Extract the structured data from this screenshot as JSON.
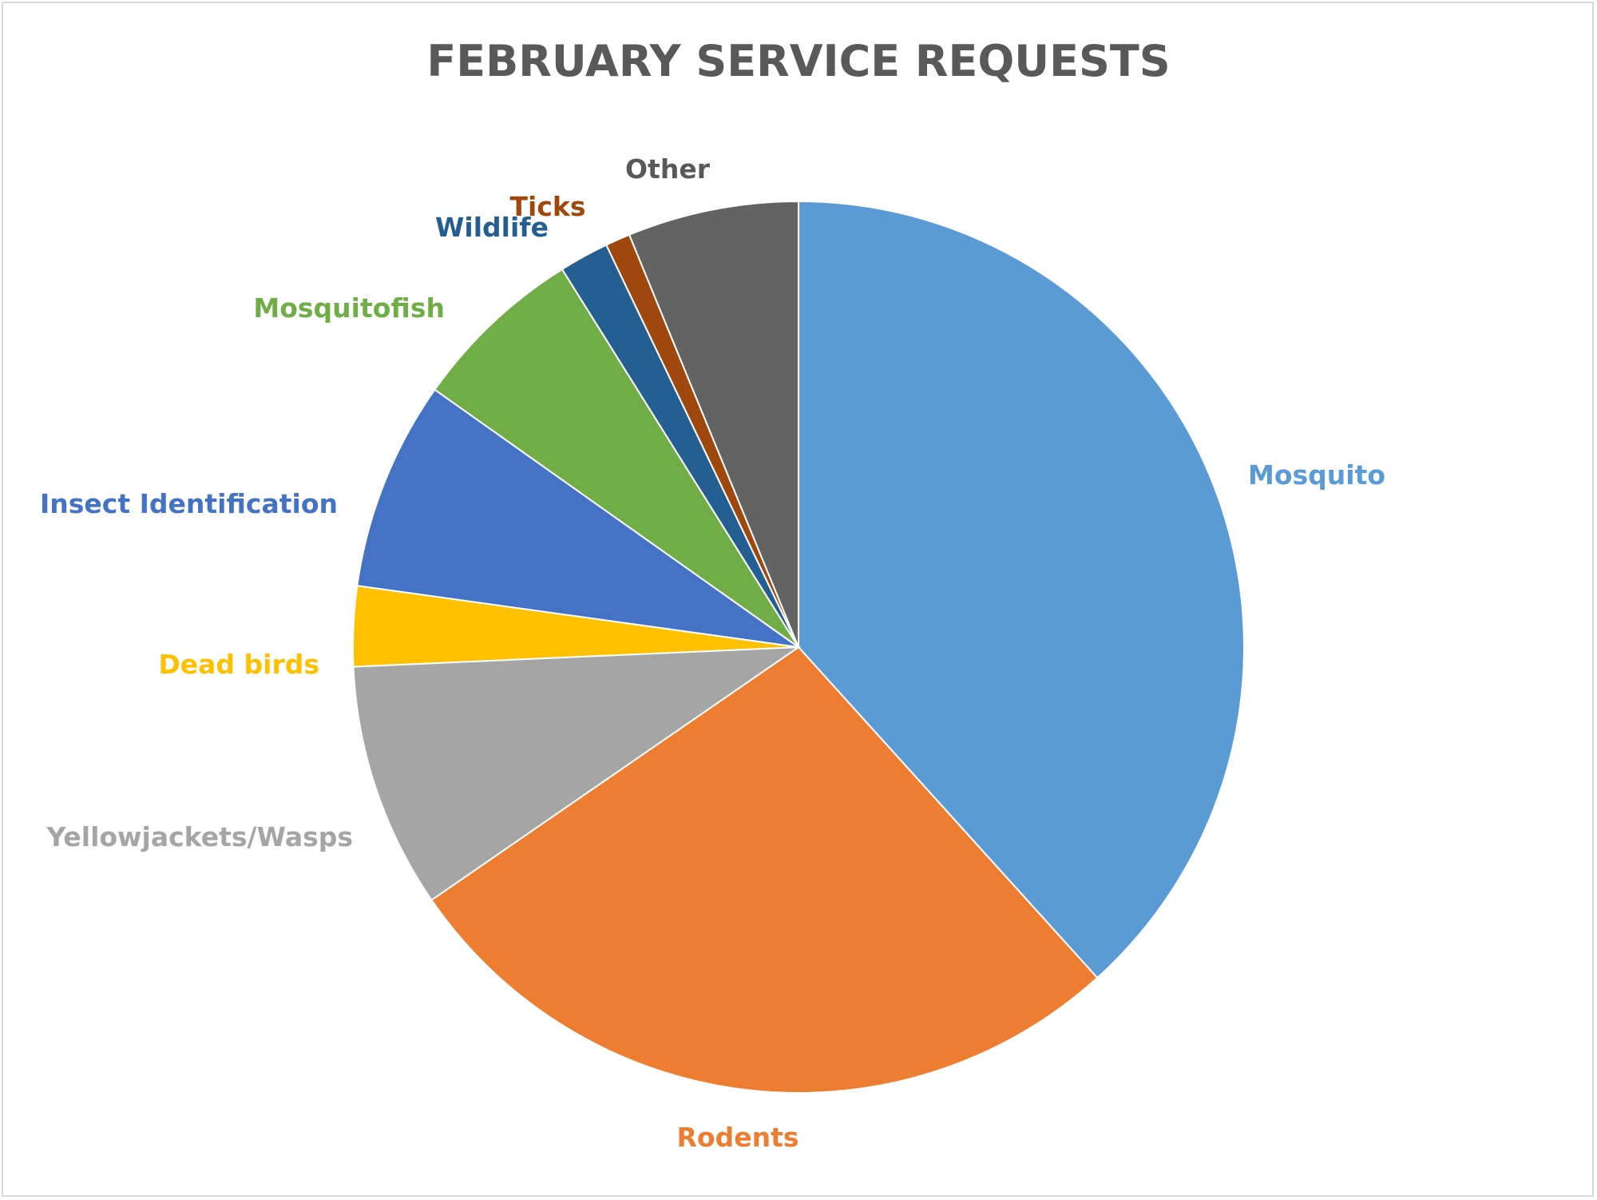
{
  "chart_data": {
    "type": "pie",
    "title": "FEBRUARY SERVICE REQUESTS",
    "start_angle_deg": 0,
    "direction": "clockwise",
    "legend": "none",
    "categories": [
      "Mosquito",
      "Rodents",
      "Yellowjackets/Wasps",
      "Dead birds",
      "Insect Identification",
      "Mosquitofish",
      "Wildlife",
      "Ticks",
      "Other"
    ],
    "values": [
      38.3,
      27.1,
      8.9,
      2.9,
      7.6,
      6.3,
      1.8,
      0.9,
      6.2
    ],
    "colors": [
      "#5B9BD5",
      "#ED7D31",
      "#A5A5A5",
      "#FFC000",
      "#4472C4",
      "#70AD47",
      "#255E91",
      "#9E480E",
      "#636363"
    ]
  }
}
